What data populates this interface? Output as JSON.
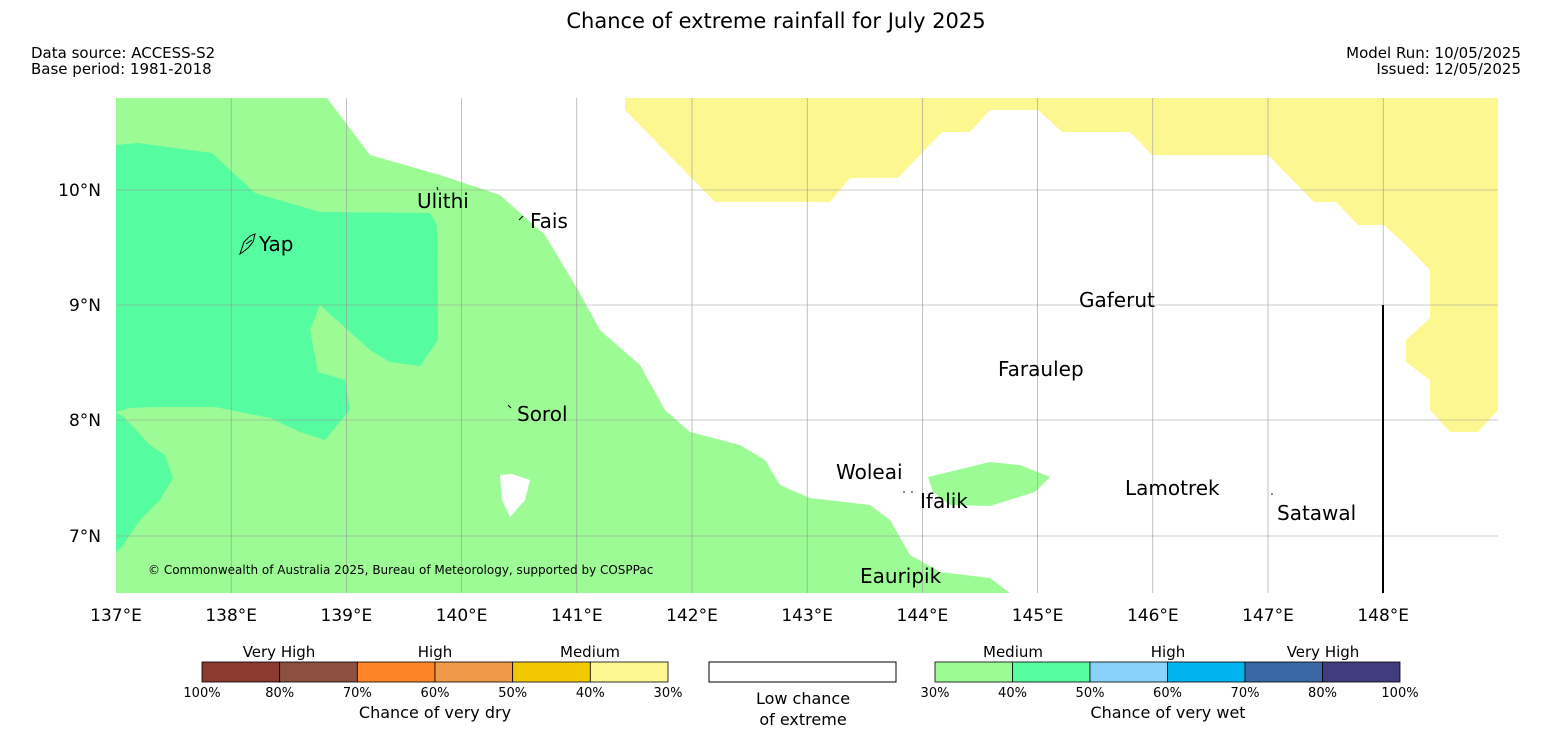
{
  "title": "Chance of extreme rainfall for July 2025",
  "header": {
    "data_source": "Data source: ACCESS-S2",
    "base_period": "Base period: 1981-2018",
    "model_run": "Model Run: 10/05/2025",
    "issued": "Issued: 12/05/2025"
  },
  "map": {
    "copyright": "© Commonwealth of Australia 2025, Bureau of Meteorology, supported by COSPPac",
    "lon_labels": [
      "137°E",
      "138°E",
      "139°E",
      "140°E",
      "141°E",
      "142°E",
      "143°E",
      "144°E",
      "145°E",
      "146°E",
      "147°E",
      "148°E"
    ],
    "lat_labels": [
      "10°N",
      "9°N",
      "8°N",
      "7°N"
    ],
    "islands": {
      "yap": "Yap",
      "ulithi": "Ulithi",
      "fais": "Fais",
      "gaferut": "Gaferut",
      "faraulep": "Faraulep",
      "sorol": "Sorol",
      "woleai": "Woleai",
      "ifalik": "Ifalik",
      "lamotrek": "Lamotrek",
      "satawal": "Satawal",
      "eauripik": "Eauripik"
    },
    "colors": {
      "wet_medium_light": "#9dfb96",
      "wet_medium_dark": "#55fca0",
      "dry_medium_light": "#fcf791",
      "grid": "#999999"
    }
  },
  "legend": {
    "dry": {
      "title": "Chance of very dry",
      "groups": [
        "Very High",
        "High",
        "Medium"
      ],
      "ticks": [
        "100%",
        "80%",
        "70%",
        "60%",
        "50%",
        "40%",
        "30%"
      ],
      "colors": [
        "#8c3a30",
        "#8c5040",
        "#ff8426",
        "#ee9a48",
        "#f2c900",
        "#fcf791"
      ]
    },
    "low": {
      "line1": "Low chance",
      "line2": "of extreme"
    },
    "wet": {
      "title": "Chance of very wet",
      "groups": [
        "Medium",
        "High",
        "Very High"
      ],
      "ticks": [
        "30%",
        "40%",
        "50%",
        "60%",
        "70%",
        "80%",
        "100%"
      ],
      "colors": [
        "#9dfb96",
        "#55fca0",
        "#89d2fc",
        "#00b4f0",
        "#3a67a5",
        "#3f3c7f"
      ]
    }
  }
}
